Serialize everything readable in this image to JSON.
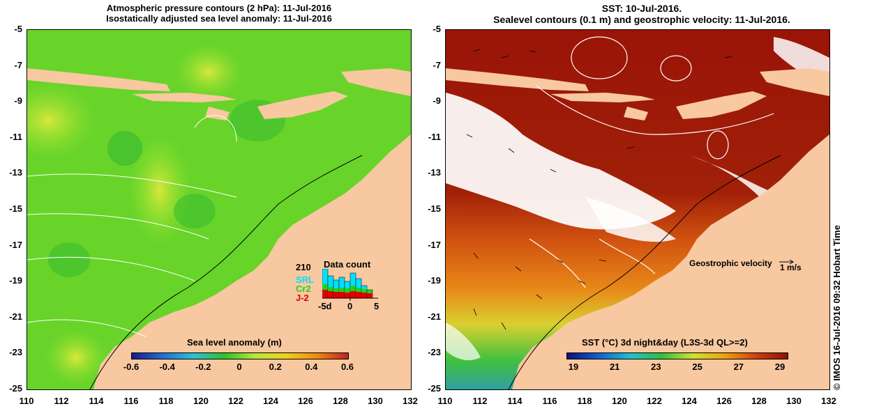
{
  "left_panel": {
    "title_line1": "Atmospheric pressure contours (2 hPa): 11-Jul-2016",
    "title_line2": "Isostatically adjusted sea level anomaly: 11-Jul-2016",
    "colorbar": {
      "title": "Sea level anomaly (m)",
      "labels": [
        "-0.6",
        "-0.4",
        "-0.2",
        "0",
        "0.2",
        "0.4",
        "0.6"
      ],
      "colors": [
        "#1a1a8c",
        "#1f6fd6",
        "#2fc0d8",
        "#2cc02c",
        "#b8e83a",
        "#f0d020",
        "#f08a10",
        "#c02020"
      ]
    },
    "data_count": {
      "title": "Data count",
      "max_label": "210",
      "axis_labels": [
        "-5d",
        "0",
        "5"
      ],
      "sat_srl": "SRL",
      "sat_cr2": "Cr2",
      "sat_j2": "J-2",
      "color_srl": "#00e0ff",
      "color_cr2": "#20d020",
      "color_j2": "#e00000"
    }
  },
  "right_panel": {
    "title_line1": "SST: 10-Jul-2016.",
    "title_line2": "Sealevel contours (0.1 m) and geostrophic velocity: 11-Jul-2016.",
    "colorbar": {
      "title": "SST (°C) 3d night&day (L3S-3d QL>=2)",
      "labels": [
        "19",
        "21",
        "23",
        "25",
        "27",
        "29"
      ],
      "colors": [
        "#10107a",
        "#1060d0",
        "#20c0d0",
        "#30c040",
        "#d0e030",
        "#f0a010",
        "#d04010",
        "#901000"
      ]
    },
    "velocity_label": "Geostrophic velocity",
    "velocity_scale": "1 m/s"
  },
  "axes": {
    "y_ticks": [
      "-5",
      "-7",
      "-9",
      "-11",
      "-13",
      "-15",
      "-17",
      "-19",
      "-21",
      "-23",
      "-25"
    ],
    "x_ticks": [
      "110",
      "112",
      "114",
      "116",
      "118",
      "120",
      "122",
      "124",
      "126",
      "128",
      "130",
      "132"
    ]
  },
  "copyright": "© IMOS 16-Jul-2016 09:32 Hobart Time",
  "colors": {
    "land": "#f8c8a0",
    "sea_green": "#6ad82a",
    "sst_red": "#9a1408"
  }
}
